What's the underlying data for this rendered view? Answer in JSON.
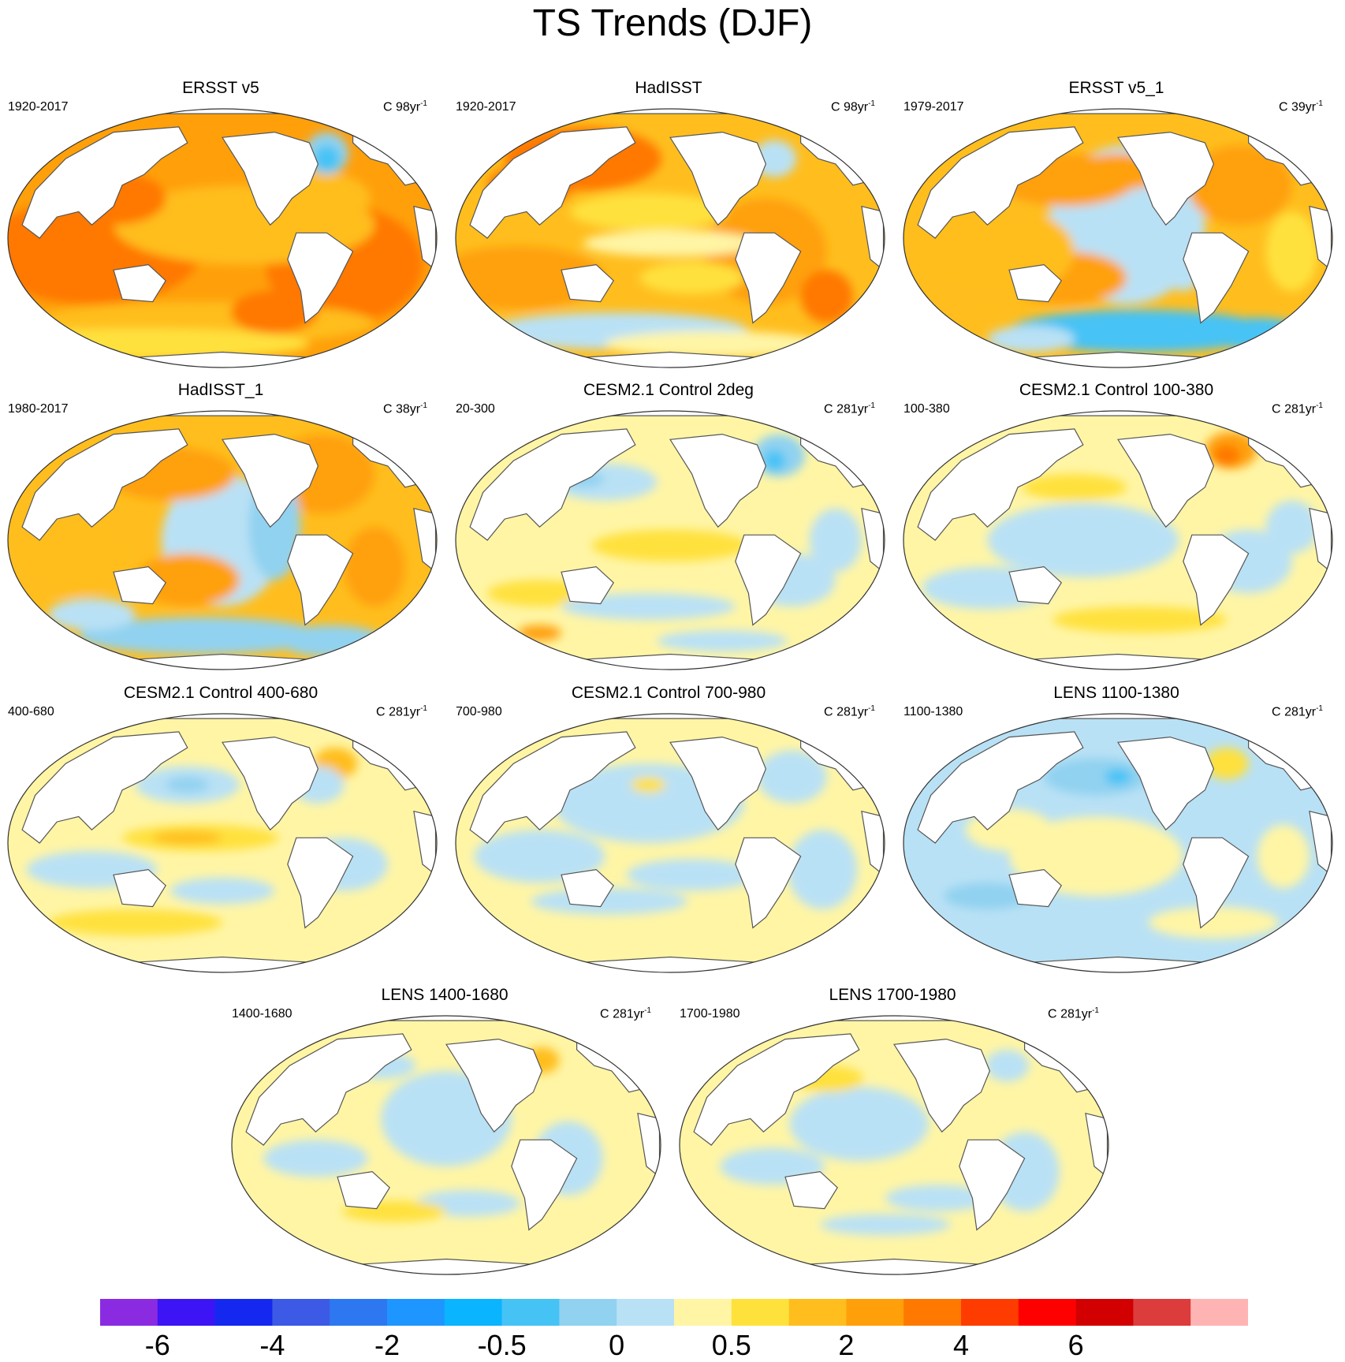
{
  "title": "TS Trends (DJF)",
  "units_prefix": "C",
  "panels": [
    {
      "title": "ERSST v5",
      "period": "1920-2017",
      "trend_years": "98yr",
      "units_sup": "-1",
      "pattern": "warm_uniform"
    },
    {
      "title": "HadISST",
      "period": "1920-2017",
      "trend_years": "98yr",
      "units_sup": "-1",
      "pattern": "warm_patchy"
    },
    {
      "title": "ERSST v5_1",
      "period": "1979-2017",
      "trend_years": "39yr",
      "units_sup": "-1",
      "pattern": "recent"
    },
    {
      "title": "HadISST_1",
      "period": "1980-2017",
      "trend_years": "38yr",
      "units_sup": "-1",
      "pattern": "recent_patchy"
    },
    {
      "title": "CESM2.1 Control 2deg",
      "period": "20-300",
      "trend_years": "281yr",
      "units_sup": "-1",
      "pattern": "control_a"
    },
    {
      "title": "CESM2.1 Control 100-380",
      "period": "100-380",
      "trend_years": "281yr",
      "units_sup": "-1",
      "pattern": "control_b"
    },
    {
      "title": "CESM2.1 Control 400-680",
      "period": "400-680",
      "trend_years": "281yr",
      "units_sup": "-1",
      "pattern": "control_c"
    },
    {
      "title": "CESM2.1 Control 700-980",
      "period": "700-980",
      "trend_years": "281yr",
      "units_sup": "-1",
      "pattern": "control_d"
    },
    {
      "title": "LENS 1100-1380",
      "period": "1100-1380",
      "trend_years": "281yr",
      "units_sup": "-1",
      "pattern": "control_e"
    },
    {
      "title": "LENS 1400-1680",
      "period": "1400-1680",
      "trend_years": "281yr",
      "units_sup": "-1",
      "pattern": "control_f"
    },
    {
      "title": "LENS 1700-1980",
      "period": "1700-1980",
      "trend_years": "281yr",
      "units_sup": "-1",
      "pattern": "control_g"
    }
  ],
  "colorbar": {
    "colors": [
      "#8a2be2",
      "#3c14f5",
      "#1428f0",
      "#3c5ae6",
      "#2d78f0",
      "#1e96ff",
      "#0ab4ff",
      "#46c3f5",
      "#91d2f0",
      "#b9e1f5",
      "#fff5a5",
      "#ffe13c",
      "#ffbe1e",
      "#ffa00a",
      "#ff7800",
      "#ff3c00",
      "#ff0000",
      "#d20000",
      "#dc3c3c",
      "#ffb4b4"
    ],
    "labels": [
      "-6",
      "-4",
      "-2",
      "-0.5",
      "0",
      "0.5",
      "2",
      "4",
      "6"
    ],
    "label_boundaries": [
      1,
      3,
      5,
      7,
      9,
      11,
      13,
      15,
      17
    ]
  }
}
